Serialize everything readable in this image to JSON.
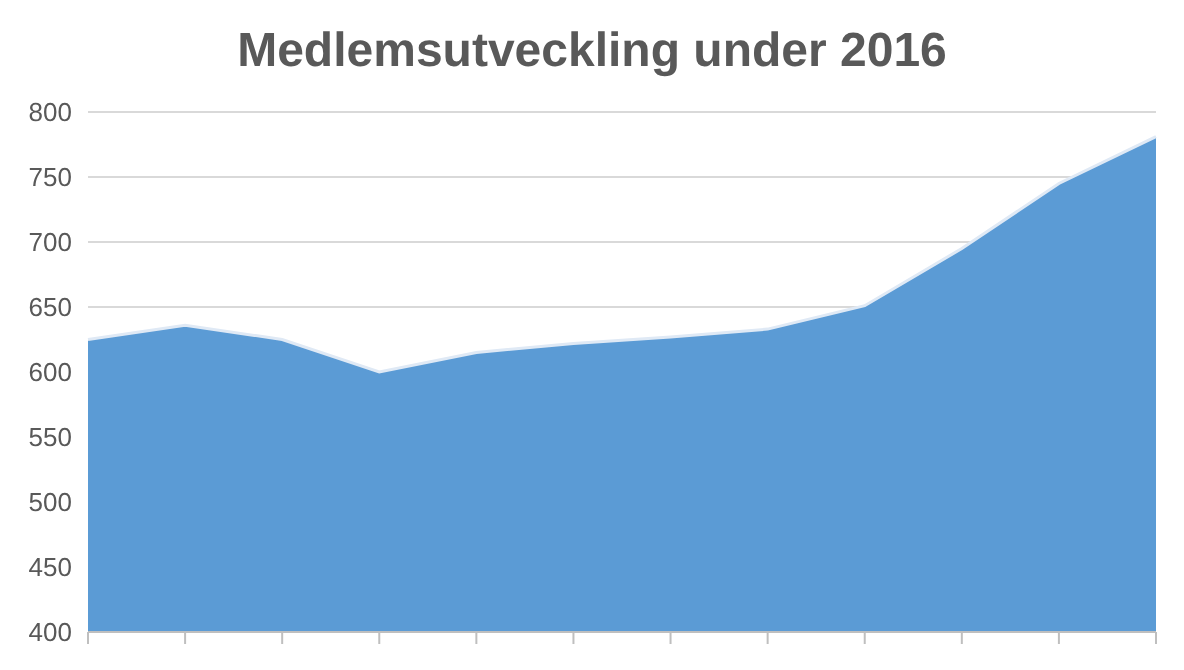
{
  "chart_data": {
    "type": "area",
    "title": "Medlemsutveckling under 2016",
    "categories": [
      null,
      null,
      null,
      null,
      null,
      null,
      null,
      null,
      null,
      null,
      null,
      null
    ],
    "values": [
      625,
      636,
      625,
      600,
      615,
      622,
      627,
      633,
      651,
      695,
      745,
      781
    ],
    "color": "#5b9bd5",
    "ylim": [
      400,
      800
    ],
    "yticks": [
      400,
      450,
      500,
      550,
      600,
      650,
      700,
      750,
      800
    ],
    "grid": "y",
    "tick_labels": "y"
  }
}
